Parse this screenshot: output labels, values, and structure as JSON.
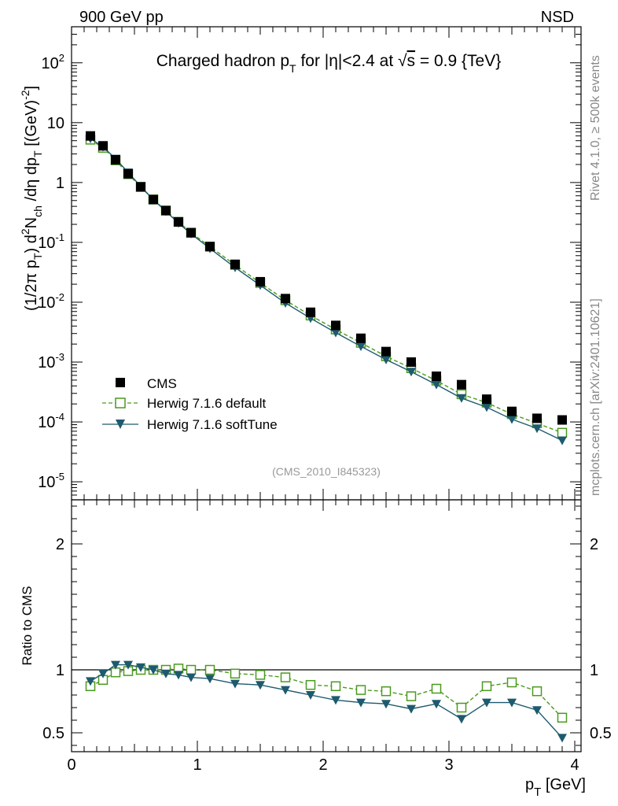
{
  "header": {
    "left": "900 GeV pp",
    "right": "NSD"
  },
  "side_texts": {
    "rivet": "Rivet 4.1.0, ≥ 500k events",
    "mcplots": "mcplots.cern.ch [arXiv:2401.10621]"
  },
  "colors": {
    "cms": "#000000",
    "default": "#4a9a1e",
    "softtune": "#1d5a6e"
  },
  "chart_data": [
    {
      "type": "scatter",
      "panel": "main",
      "title": "Charged hadron p_T for |η|<2.4 at √s = 0.9 {TeV}",
      "title_parts": {
        "a": "Charged hadron p",
        "b": "T",
        "c": " for |η|<2.4 at ",
        "d": "√",
        "e": "s",
        "f": " = 0.9 {TeV}"
      },
      "ylabel": "(1/2π p_T) d²N_ch/dη dp_T [(GeV)⁻²]",
      "ylabel_parts": {
        "a": "(1/2π p",
        "b": "T",
        "c": ") d",
        "d": "2",
        "e": "N",
        "f": "ch",
        "g": " /dη  dp",
        "h": "T",
        "i": " [(GeV)",
        "j": "-2",
        "k": "]"
      },
      "yscale": "log",
      "ylim": [
        5e-06,
        400
      ],
      "yticks": [
        {
          "label": "10",
          "exp": "-5",
          "v": 1e-05
        },
        {
          "label": "10",
          "exp": "-4",
          "v": 0.0001
        },
        {
          "label": "10",
          "exp": "-3",
          "v": 0.001
        },
        {
          "label": "10",
          "exp": "-2",
          "v": 0.01
        },
        {
          "label": "10",
          "exp": "-1",
          "v": 0.1
        },
        {
          "label": "1",
          "exp": "",
          "v": 1
        },
        {
          "label": "10",
          "exp": "",
          "v": 10
        },
        {
          "label": "10",
          "exp": "2",
          "v": 100
        }
      ],
      "xlim": [
        0,
        4.05
      ],
      "x": [
        0.15,
        0.25,
        0.35,
        0.45,
        0.55,
        0.65,
        0.75,
        0.85,
        0.95,
        1.1,
        1.3,
        1.5,
        1.7,
        1.9,
        2.1,
        2.3,
        2.5,
        2.7,
        2.9,
        3.1,
        3.3,
        3.5,
        3.7,
        3.9
      ],
      "series": [
        {
          "name": "CMS",
          "marker": "square-filled",
          "values": [
            6.0,
            4.1,
            2.4,
            1.4,
            0.85,
            0.52,
            0.34,
            0.22,
            0.145,
            0.085,
            0.043,
            0.022,
            0.0115,
            0.0068,
            0.0041,
            0.0025,
            0.0015,
            0.001,
            0.00058,
            0.00042,
            0.00024,
            0.00015,
            0.000115,
            0.000108
          ]
        },
        {
          "name": "Herwig 7.1.6 default",
          "marker": "open-square",
          "line": "dashed",
          "values": [
            5.2,
            3.8,
            2.35,
            1.38,
            0.84,
            0.52,
            0.34,
            0.22,
            0.145,
            0.085,
            0.042,
            0.021,
            0.0108,
            0.006,
            0.0035,
            0.0021,
            0.00125,
            0.00079,
            0.00049,
            0.00029,
            0.00021,
            0.000135,
            9.5e-05,
            6.6e-05
          ]
        },
        {
          "name": "Herwig 7.1.6 softTune",
          "marker": "triangle-down-filled",
          "line": "solid",
          "values": [
            5.4,
            3.95,
            2.5,
            1.47,
            0.86,
            0.52,
            0.33,
            0.21,
            0.139,
            0.079,
            0.038,
            0.0192,
            0.0097,
            0.0054,
            0.0031,
            0.00183,
            0.0011,
            0.00069,
            0.00042,
            0.00025,
            0.000176,
            0.000111,
            7.8e-05,
            4.9e-05
          ]
        }
      ],
      "legend": [
        "CMS",
        "Herwig 7.1.6 default",
        "Herwig 7.1.6 softTune"
      ],
      "legend_position": "bottom-left",
      "annotation": "(CMS_2010_I845323)"
    },
    {
      "type": "line",
      "panel": "ratio",
      "ylabel": "Ratio to CMS",
      "ylim": [
        0.35,
        2.35
      ],
      "yticks": [
        {
          "label": "0.5",
          "v": 0.5
        },
        {
          "label": "1",
          "v": 1
        },
        {
          "label": "2",
          "v": 2
        }
      ],
      "xlabel": "p_T [GeV]",
      "xlabel_parts": {
        "a": "p",
        "b": "T",
        "c": " [GeV]"
      },
      "xticks": [
        {
          "label": "0",
          "v": 0
        },
        {
          "label": "1",
          "v": 1
        },
        {
          "label": "2",
          "v": 2
        },
        {
          "label": "3",
          "v": 3
        },
        {
          "label": "4",
          "v": 4
        }
      ],
      "x": [
        0.15,
        0.25,
        0.35,
        0.45,
        0.55,
        0.65,
        0.75,
        0.85,
        0.95,
        1.1,
        1.3,
        1.5,
        1.7,
        1.9,
        2.1,
        2.3,
        2.5,
        2.7,
        2.9,
        3.1,
        3.3,
        3.5,
        3.7,
        3.9
      ],
      "series": [
        {
          "name": "Herwig 7.1.6 default",
          "line": "dashed",
          "marker": "open-square",
          "values": [
            0.87,
            0.92,
            0.98,
            0.99,
            1.0,
            1.0,
            1.0,
            1.01,
            1.0,
            1.0,
            0.97,
            0.96,
            0.94,
            0.88,
            0.87,
            0.84,
            0.83,
            0.79,
            0.85,
            0.7,
            0.87,
            0.9,
            0.83,
            0.62
          ]
        },
        {
          "name": "Herwig 7.1.6 softTune",
          "line": "solid",
          "marker": "triangle-down-filled",
          "values": [
            0.91,
            0.97,
            1.04,
            1.04,
            1.02,
            1.0,
            0.97,
            0.96,
            0.94,
            0.93,
            0.89,
            0.88,
            0.84,
            0.8,
            0.76,
            0.74,
            0.73,
            0.69,
            0.73,
            0.61,
            0.74,
            0.74,
            0.68,
            0.46
          ]
        }
      ],
      "reference_line": 1
    }
  ]
}
